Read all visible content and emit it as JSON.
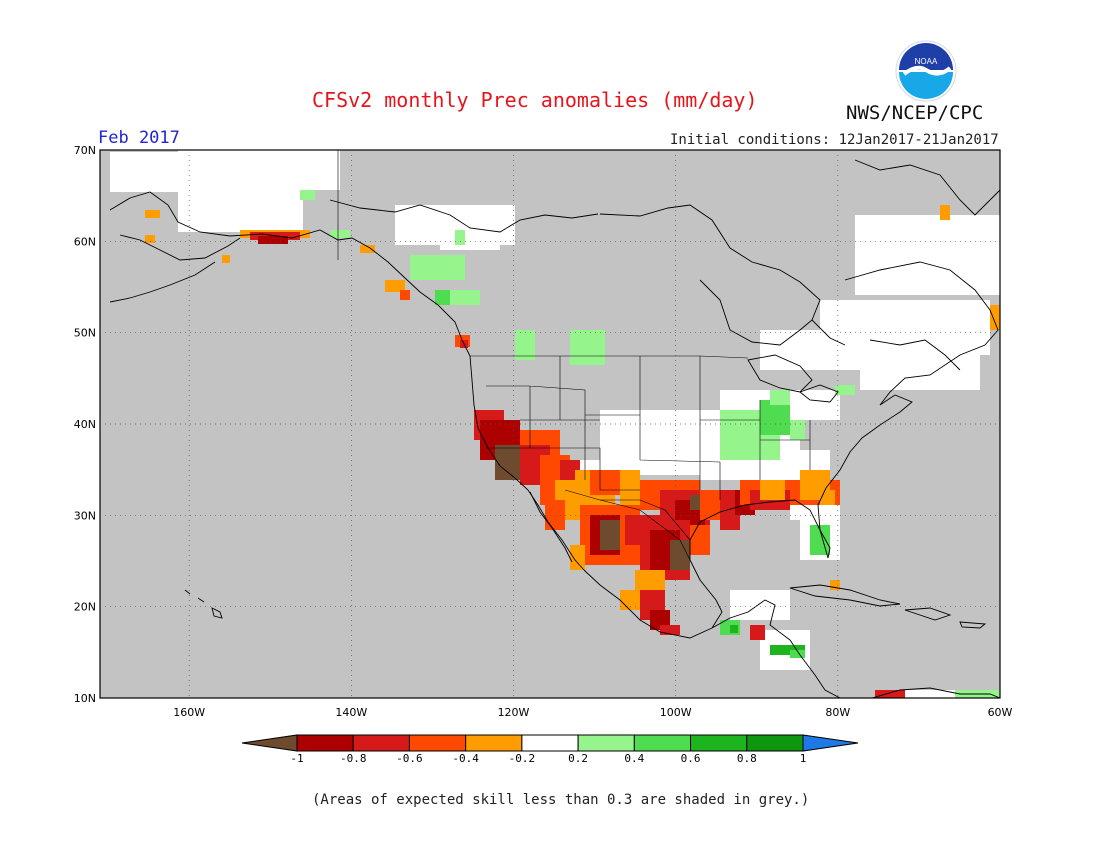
{
  "header": {
    "title": "CFSv2 monthly Prec anomalies (mm/day)",
    "agency": "NWS/NCEP/CPC",
    "logo_text": "NOAA",
    "target_month": "Feb 2017",
    "initial_conditions": "Initial conditions: 12Jan2017-21Jan2017"
  },
  "map": {
    "lat_labels": [
      "70N",
      "60N",
      "50N",
      "40N",
      "30N",
      "20N",
      "10N"
    ],
    "lon_labels": [
      "160W",
      "140W",
      "120W",
      "100W",
      "80W",
      "60W"
    ],
    "extent": {
      "lon": [
        -171,
        -60
      ],
      "lat": [
        10,
        70
      ]
    },
    "grid": true,
    "colors": {
      "no_skill": "#c3c3c3",
      "land_no_signal": "#ffffff",
      "coast": "#000000"
    }
  },
  "legend": {
    "tick_labels": [
      "-1",
      "-0.8",
      "-0.6",
      "-0.4",
      "-0.2",
      "0.2",
      "0.4",
      "0.6",
      "0.8",
      "1"
    ],
    "bins": [
      {
        "range": "< -1",
        "color": "#6e4a2e"
      },
      {
        "range": "-1 to -0.8",
        "color": "#ad0000"
      },
      {
        "range": "-0.8 to -0.6",
        "color": "#d61a1a"
      },
      {
        "range": "-0.6 to -0.4",
        "color": "#ff4800"
      },
      {
        "range": "-0.4 to -0.2",
        "color": "#ff9d00"
      },
      {
        "range": "-0.2 to 0.2",
        "color": "#ffffff"
      },
      {
        "range": "0.2 to 0.4",
        "color": "#96f48c"
      },
      {
        "range": "0.4 to 0.6",
        "color": "#50dc50"
      },
      {
        "range": "0.6 to 0.8",
        "color": "#1eb41e"
      },
      {
        "range": "0.8 to 1",
        "color": "#0f960f"
      },
      {
        "range": "> 1",
        "color": "#1e78e6"
      }
    ]
  },
  "footer": {
    "note": "(Areas of expected skill less than 0.3 are shaded in grey.)"
  }
}
